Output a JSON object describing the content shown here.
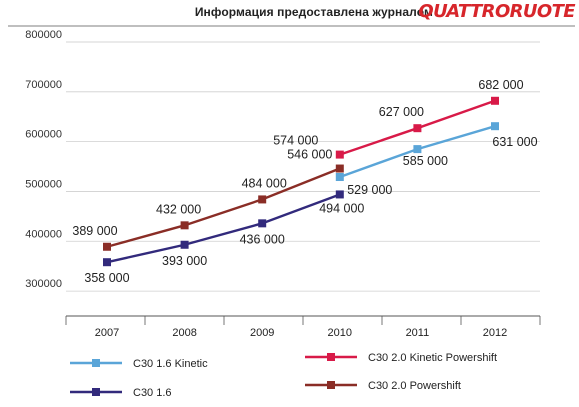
{
  "header": {
    "text": "Информация предоставлена журналом",
    "brand": "QUATTRORUOTE",
    "brand_color": "#d7262b"
  },
  "chart_data": {
    "type": "line",
    "title": "",
    "xlabel": "",
    "ylabel": "",
    "x": [
      "2007",
      "2008",
      "2009",
      "2010",
      "2011",
      "2012"
    ],
    "ylim": [
      250000,
      800000
    ],
    "y_ticks": [
      "300000",
      "400000",
      "500000",
      "600000",
      "700000",
      "800000"
    ],
    "grid": "horizontal",
    "legend_position": "bottom",
    "series": [
      {
        "name": "C30 1.6 Kinetic",
        "color": "#5aa5d8",
        "marker_color": "#5aa5d8",
        "values": [
          null,
          null,
          null,
          529000,
          585000,
          631000
        ],
        "labels": [
          "",
          "",
          "",
          "529 000",
          "585 000",
          "631 000"
        ]
      },
      {
        "name": "C30 2.0 Kinetic Powershift",
        "color": "#d81a48",
        "marker_color": "#d81a48",
        "values": [
          null,
          null,
          null,
          574000,
          627000,
          682000
        ],
        "labels": [
          "",
          "",
          "",
          "574 000",
          "627 000",
          "682 000"
        ]
      },
      {
        "name": "C30 1.6",
        "color": "#322a7c",
        "marker_color": "#322a7c",
        "values": [
          358000,
          393000,
          436000,
          494000,
          null,
          null
        ],
        "labels": [
          "358 000",
          "393 000",
          "436 000",
          "494 000",
          "",
          ""
        ]
      },
      {
        "name": "C30 2.0 Powershift",
        "color": "#8a2d26",
        "marker_color": "#8a2d26",
        "values": [
          389000,
          432000,
          484000,
          546000,
          null,
          null
        ],
        "labels": [
          "389 000",
          "432 000",
          "484 000",
          "546 000",
          "",
          ""
        ]
      }
    ]
  }
}
